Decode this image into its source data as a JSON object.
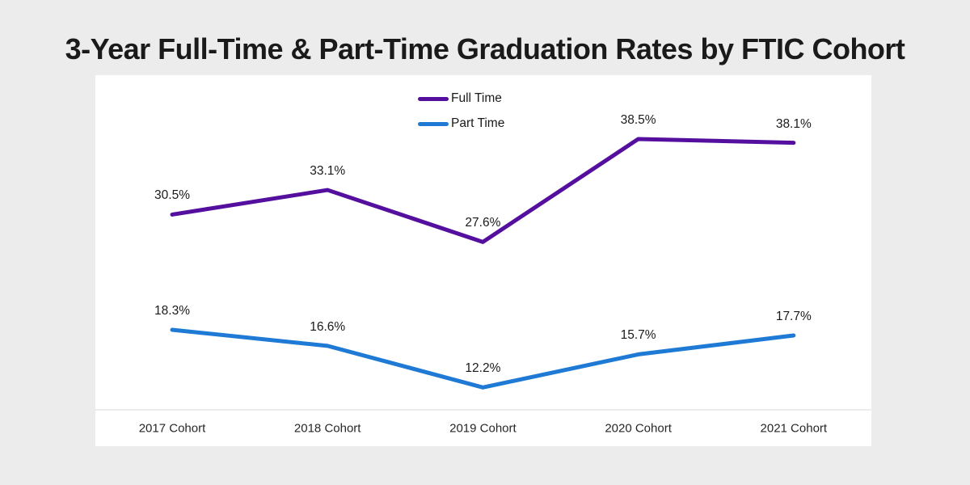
{
  "title": "3-Year Full-Time & Part-Time Graduation Rates by FTIC Cohort",
  "colors": {
    "background": "#ECECEC",
    "card": "#FFFFFF",
    "title_text": "#1A1A1A",
    "data_label_text": "#1A1A1A",
    "category_label_text": "#262626",
    "axis_line": "#D9D9D9",
    "full_time": "#550F9E",
    "part_time": "#1E7AD4"
  },
  "legend": [
    {
      "label": "Full Time",
      "color_key": "full_time"
    },
    {
      "label": "Part Time",
      "color_key": "part_time"
    }
  ],
  "chart_data": {
    "type": "line",
    "title": "3-Year Full-Time & Part-Time Graduation Rates by FTIC Cohort",
    "categories": [
      "2017 Cohort",
      "2018 Cohort",
      "2019 Cohort",
      "2020 Cohort",
      "2021 Cohort"
    ],
    "series": [
      {
        "name": "Full Time",
        "color": "#550F9E",
        "values": [
          30.5,
          33.1,
          27.6,
          38.5,
          38.1
        ],
        "labels": [
          "30.5%",
          "33.1%",
          "27.6%",
          "38.5%",
          "38.1%"
        ]
      },
      {
        "name": "Part Time",
        "color": "#1E7AD4",
        "values": [
          18.3,
          16.6,
          12.2,
          15.7,
          17.7
        ],
        "labels": [
          "18.3%",
          "16.6%",
          "12.2%",
          "15.7%",
          "17.7%"
        ]
      }
    ],
    "xlabel": "",
    "ylabel": "",
    "ylim": [
      10,
      45
    ],
    "grid": false,
    "data_labels": true,
    "legend_position": "top-center"
  }
}
